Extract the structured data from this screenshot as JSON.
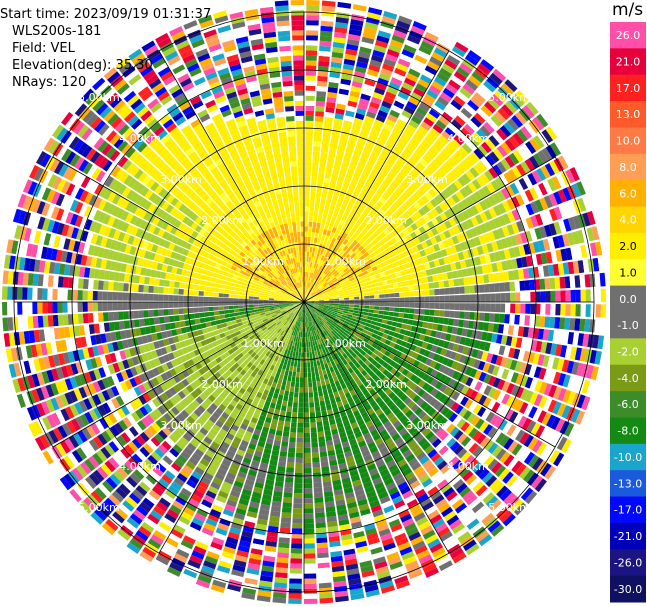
{
  "info": {
    "start_time": "Start time: 2023/09/19 01:31:37",
    "instrument": "WLS200s-181",
    "field": "Field: VEL",
    "elevation": "Elevation(deg): 35.30",
    "nrays": "NRays: 120"
  },
  "colorbar": {
    "title": "m/s",
    "ticks": [
      "26.0",
      "21.0",
      "17.0",
      "13.0",
      "10.0",
      "8.0",
      "6.0",
      "4.0",
      "2.0",
      "1.0",
      "0.0",
      "-1.0",
      "-2.0",
      "-4.0",
      "-6.0",
      "-8.0",
      "-10.0",
      "-13.0",
      "-17.0",
      "-21.0",
      "-26.0",
      "-30.0"
    ],
    "colors": [
      "#ff4fa8",
      "#e8003c",
      "#ff2020",
      "#ff5a2a",
      "#ff7a45",
      "#ff9e55",
      "#ffb000",
      "#ffd400",
      "#ffee00",
      "#ffff33",
      "#707070",
      "#707070",
      "#a8d030",
      "#7a9a18",
      "#3c8c2a",
      "#148a14",
      "#1aa6cc",
      "#1a5adc",
      "#0008ff",
      "#0000b8",
      "#1c1480",
      "#101060"
    ]
  },
  "chart_data": {
    "type": "heatmap",
    "title": "",
    "projection": "polar plan position indicator",
    "nrays": 120,
    "range_rings_labels": [
      "1.00km",
      "2.00km",
      "3.00km",
      "4.00km",
      "5.00km"
    ],
    "field": "VEL",
    "units": "m/s",
    "color_range": [
      -30.0,
      26.0
    ],
    "regions": [
      {
        "description_sector": "north",
        "range_km": [
          0,
          3.2
        ],
        "value_ms": 2.0
      },
      {
        "description_sector": "north-center patch",
        "range_km": [
          0,
          1.4
        ],
        "value_ms": 4.0
      },
      {
        "description_sector": "east-west belt",
        "range_km": [
          0,
          3.5
        ],
        "value_ms": 0.0
      },
      {
        "description_sector": "south",
        "range_km": [
          0,
          3.5
        ],
        "value_ms": -6.0
      },
      {
        "description_sector": "south-west",
        "range_km": [
          0,
          3.3
        ],
        "value_ms": -2.0
      },
      {
        "description_sector": "outer ring noise",
        "range_km": [
          3.5,
          6.0
        ],
        "value_ms": "mixed"
      }
    ]
  }
}
